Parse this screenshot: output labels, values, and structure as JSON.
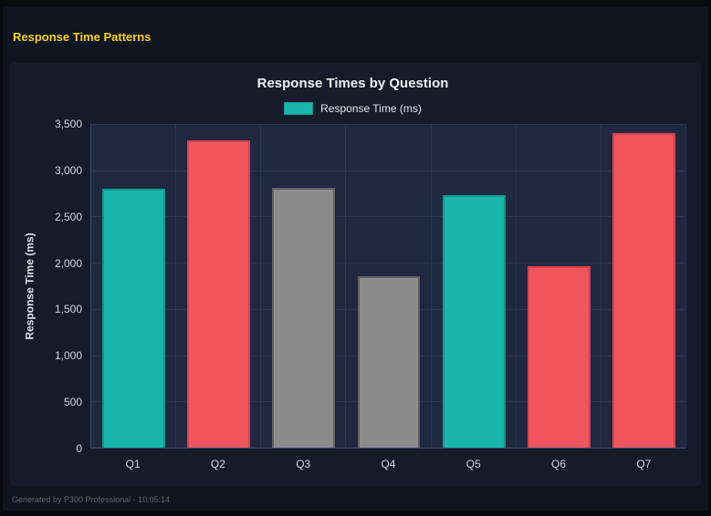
{
  "page": {
    "header_title": "Response Time Patterns",
    "footer_text": "Generated by P300 Professional - 10:05:14"
  },
  "chart_data": {
    "type": "bar",
    "title": "Response Times by Question",
    "legend": {
      "label": "Response Time (ms)",
      "color": "#18b6aa",
      "border": "#0f978d"
    },
    "categories": [
      "Q1",
      "Q2",
      "Q3",
      "Q4",
      "Q5",
      "Q6",
      "Q7"
    ],
    "values": [
      2800,
      3320,
      2810,
      1850,
      2730,
      1960,
      3400
    ],
    "colors": [
      "#18b6aa",
      "#f0555d",
      "#8c8c8c",
      "#8c8c8c",
      "#18b6aa",
      "#f0555d",
      "#f0555d"
    ],
    "border_colors": [
      "#0f978d",
      "#d8434e",
      "#606060",
      "#606060",
      "#0f978d",
      "#d8434e",
      "#d8434e"
    ],
    "xlabel": "",
    "ylabel": "Response Time (ms)",
    "ylim": [
      0,
      3500
    ],
    "ytick_step": 500,
    "ytick_labels": [
      "0",
      "500",
      "1,000",
      "1,500",
      "2,000",
      "2,500",
      "3,000",
      "3,500"
    ],
    "grid": true,
    "legend_position": "top"
  }
}
